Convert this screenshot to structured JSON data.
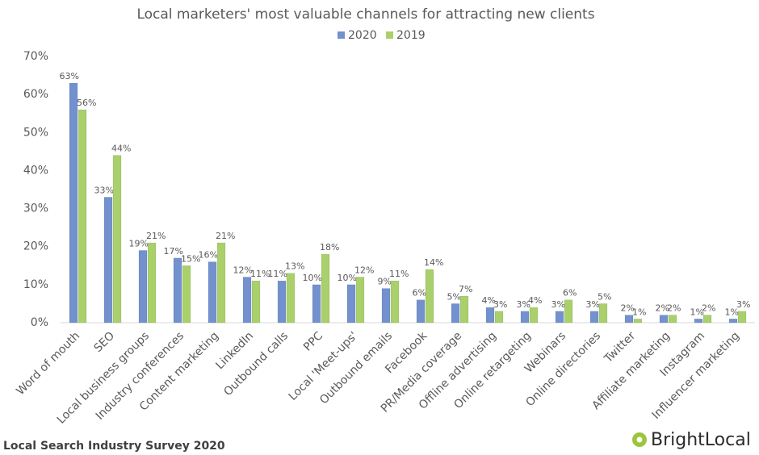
{
  "chart_data": {
    "type": "bar",
    "title": "Local marketers' most valuable channels for attracting new clients",
    "categories": [
      "Word of mouth",
      "SEO",
      "Local business groups",
      "Industry conferences",
      "Content marketing",
      "LinkedIn",
      "Outbound calls",
      "PPC",
      "Local 'Meet-ups'",
      "Outbound emails",
      "Facebook",
      "PR/Media coverage",
      "Offline advertising",
      "Online retargeting",
      "Webinars",
      "Online directories",
      "Twitter",
      "Affiliate marketing",
      "Instagram",
      "Influencer marketing"
    ],
    "series": [
      {
        "name": "2020",
        "color": "#7391cf",
        "values": [
          63,
          33,
          19,
          17,
          16,
          12,
          11,
          10,
          10,
          9,
          6,
          5,
          4,
          3,
          3,
          3,
          2,
          2,
          1,
          1
        ],
        "value_labels": [
          "63%",
          "33%",
          "19%",
          "17%",
          "16%",
          "12%",
          "11%",
          "10%",
          "10%",
          "9%",
          "6%",
          "5%",
          "4%",
          "3%",
          "3%",
          "3%",
          "2%",
          "2%",
          "1%",
          "1%"
        ]
      },
      {
        "name": "2019",
        "color": "#a9d06b",
        "values": [
          56,
          44,
          21,
          15,
          21,
          11,
          13,
          18,
          12,
          11,
          14,
          7,
          3,
          4,
          6,
          5,
          1,
          2,
          2,
          3
        ],
        "value_labels": [
          "56%",
          "44%",
          "21%",
          "15%",
          "21%",
          "11%",
          "13%",
          "18%",
          "12%",
          "11%",
          "14%",
          "7%",
          "3%",
          "4%",
          "6%",
          "5%",
          "1%",
          "2%",
          "2%",
          "3%"
        ]
      }
    ],
    "ylim": [
      0,
      70
    ],
    "yticks": [
      {
        "value": 0,
        "label": "0%"
      },
      {
        "value": 10,
        "label": "10%"
      },
      {
        "value": 20,
        "label": "20%"
      },
      {
        "value": 30,
        "label": "30%"
      },
      {
        "value": 40,
        "label": "40%"
      },
      {
        "value": 50,
        "label": "50%"
      },
      {
        "value": 60,
        "label": "60%"
      },
      {
        "value": 70,
        "label": "70%"
      }
    ],
    "grid": false,
    "legend": "top",
    "source": "Local Search Industry Survey 2020",
    "brand": "BrightLocal"
  }
}
